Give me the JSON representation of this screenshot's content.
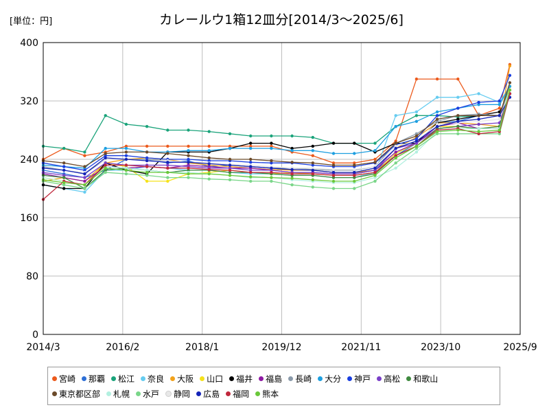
{
  "unit_label": "[単位：円]",
  "chart_data": {
    "type": "line",
    "title": "カレールウ1箱12皿分[2014/3～2025/6]",
    "xlabel": "",
    "ylabel": "",
    "ylim": [
      0,
      400
    ],
    "yticks": [
      0,
      80,
      160,
      240,
      320,
      400
    ],
    "xticks": [
      "2014/3",
      "2016/2",
      "2018/1",
      "2019/12",
      "2021/11",
      "2023/10",
      "2025/9"
    ],
    "grid": true,
    "legend_position": "bottom",
    "x": [
      "2014/3",
      "2014/9",
      "2015/3",
      "2015/9",
      "2016/3",
      "2016/9",
      "2017/3",
      "2017/9",
      "2018/3",
      "2018/9",
      "2019/3",
      "2019/9",
      "2020/3",
      "2020/9",
      "2021/3",
      "2021/9",
      "2022/3",
      "2022/9",
      "2023/3",
      "2023/9",
      "2024/3",
      "2024/9",
      "2025/3",
      "2025/6"
    ],
    "series": [
      {
        "name": "宮崎",
        "color": "#ec5a1c",
        "values": [
          240,
          255,
          245,
          250,
          258,
          258,
          258,
          258,
          258,
          258,
          258,
          258,
          250,
          245,
          235,
          235,
          240,
          265,
          350,
          350,
          350,
          300,
          310,
          370
        ]
      },
      {
        "name": "那覇",
        "color": "#2d6fd6",
        "values": [
          225,
          220,
          215,
          225,
          240,
          240,
          235,
          238,
          230,
          232,
          230,
          228,
          225,
          225,
          222,
          222,
          225,
          245,
          262,
          290,
          292,
          300,
          300,
          335
        ]
      },
      {
        "name": "松江",
        "color": "#1aa37a",
        "values": [
          258,
          255,
          250,
          300,
          288,
          285,
          280,
          280,
          278,
          275,
          272,
          272,
          272,
          270,
          262,
          262,
          262,
          285,
          300,
          300,
          298,
          300,
          300,
          340
        ]
      },
      {
        "name": "奈良",
        "color": "#66ccf0",
        "values": [
          205,
          200,
          195,
          225,
          225,
          230,
          228,
          225,
          225,
          222,
          220,
          220,
          218,
          218,
          215,
          215,
          222,
          300,
          305,
          325,
          325,
          330,
          318,
          340
        ]
      },
      {
        "name": "大阪",
        "color": "#f2a21b",
        "values": [
          210,
          215,
          210,
          235,
          240,
          242,
          240,
          235,
          232,
          230,
          228,
          226,
          225,
          225,
          222,
          222,
          225,
          255,
          270,
          290,
          290,
          288,
          285,
          368
        ]
      },
      {
        "name": "山口",
        "color": "#f5e21b",
        "values": [
          215,
          210,
          205,
          235,
          230,
          210,
          210,
          220,
          222,
          225,
          222,
          220,
          222,
          220,
          218,
          218,
          222,
          248,
          262,
          285,
          285,
          282,
          285,
          340
        ]
      },
      {
        "name": "福井",
        "color": "#000000",
        "values": [
          205,
          200,
          200,
          235,
          225,
          220,
          250,
          250,
          250,
          255,
          262,
          262,
          255,
          258,
          262,
          262,
          250,
          262,
          262,
          290,
          295,
          300,
          305,
          330
        ]
      },
      {
        "name": "福島",
        "color": "#8e1aa3",
        "values": [
          220,
          215,
          210,
          230,
          228,
          230,
          228,
          232,
          230,
          228,
          228,
          225,
          222,
          222,
          220,
          220,
          225,
          250,
          262,
          285,
          290,
          282,
          282,
          335
        ]
      },
      {
        "name": "長崎",
        "color": "#8a9aaa",
        "values": [
          230,
          225,
          220,
          240,
          240,
          240,
          238,
          236,
          235,
          232,
          230,
          228,
          228,
          226,
          225,
          225,
          230,
          262,
          275,
          292,
          300,
          302,
          300,
          335
        ]
      },
      {
        "name": "大分",
        "color": "#1e9fe0",
        "values": [
          232,
          230,
          228,
          255,
          255,
          250,
          250,
          252,
          252,
          255,
          255,
          255,
          252,
          252,
          248,
          248,
          252,
          285,
          292,
          305,
          310,
          315,
          315,
          340
        ]
      },
      {
        "name": "神戸",
        "color": "#1a3fe0",
        "values": [
          235,
          230,
          225,
          245,
          245,
          242,
          240,
          240,
          238,
          238,
          236,
          235,
          235,
          232,
          230,
          230,
          235,
          260,
          268,
          300,
          310,
          318,
          320,
          355
        ]
      },
      {
        "name": "高松",
        "color": "#7a3fc8",
        "values": [
          222,
          218,
          215,
          235,
          232,
          232,
          232,
          230,
          228,
          228,
          225,
          225,
          222,
          222,
          220,
          220,
          225,
          255,
          262,
          282,
          285,
          288,
          290,
          330
        ]
      },
      {
        "name": "和歌山",
        "color": "#3f8a3f",
        "values": [
          218,
          215,
          200,
          225,
          228,
          225,
          222,
          225,
          225,
          222,
          222,
          220,
          218,
          218,
          215,
          215,
          220,
          245,
          258,
          282,
          285,
          282,
          285,
          330
        ]
      },
      {
        "name": "東京都区部",
        "color": "#6b4a2a",
        "values": [
          238,
          235,
          230,
          248,
          250,
          250,
          248,
          245,
          242,
          240,
          240,
          238,
          236,
          235,
          232,
          232,
          236,
          262,
          272,
          295,
          300,
          300,
          300,
          345
        ]
      },
      {
        "name": "札幌",
        "color": "#b3f0e0",
        "values": [
          215,
          210,
          205,
          230,
          228,
          225,
          222,
          222,
          220,
          218,
          215,
          215,
          212,
          210,
          208,
          208,
          215,
          228,
          250,
          278,
          282,
          282,
          282,
          330
        ]
      },
      {
        "name": "水戸",
        "color": "#7ad689",
        "values": [
          210,
          205,
          200,
          222,
          220,
          218,
          215,
          215,
          213,
          212,
          210,
          210,
          205,
          202,
          200,
          200,
          210,
          235,
          255,
          275,
          275,
          275,
          275,
          330
        ]
      },
      {
        "name": "静岡",
        "color": "#e8e8e8",
        "values": [
          228,
          225,
          222,
          240,
          240,
          238,
          238,
          236,
          235,
          233,
          232,
          230,
          228,
          228,
          226,
          226,
          230,
          258,
          265,
          288,
          290,
          292,
          295,
          335
        ]
      },
      {
        "name": "広島",
        "color": "#1424b8",
        "values": [
          228,
          225,
          220,
          242,
          240,
          238,
          236,
          236,
          234,
          232,
          230,
          228,
          226,
          225,
          222,
          222,
          228,
          255,
          265,
          285,
          292,
          295,
          300,
          325
        ]
      },
      {
        "name": "福岡",
        "color": "#c0283c",
        "values": [
          185,
          210,
          205,
          232,
          232,
          230,
          228,
          228,
          226,
          225,
          222,
          222,
          220,
          220,
          218,
          218,
          222,
          245,
          258,
          280,
          282,
          275,
          278,
          330
        ]
      },
      {
        "name": "熊本",
        "color": "#6ac83a",
        "values": [
          212,
          208,
          205,
          228,
          225,
          222,
          222,
          220,
          220,
          218,
          216,
          215,
          214,
          212,
          210,
          210,
          218,
          242,
          258,
          278,
          280,
          278,
          280,
          335
        ]
      }
    ]
  }
}
